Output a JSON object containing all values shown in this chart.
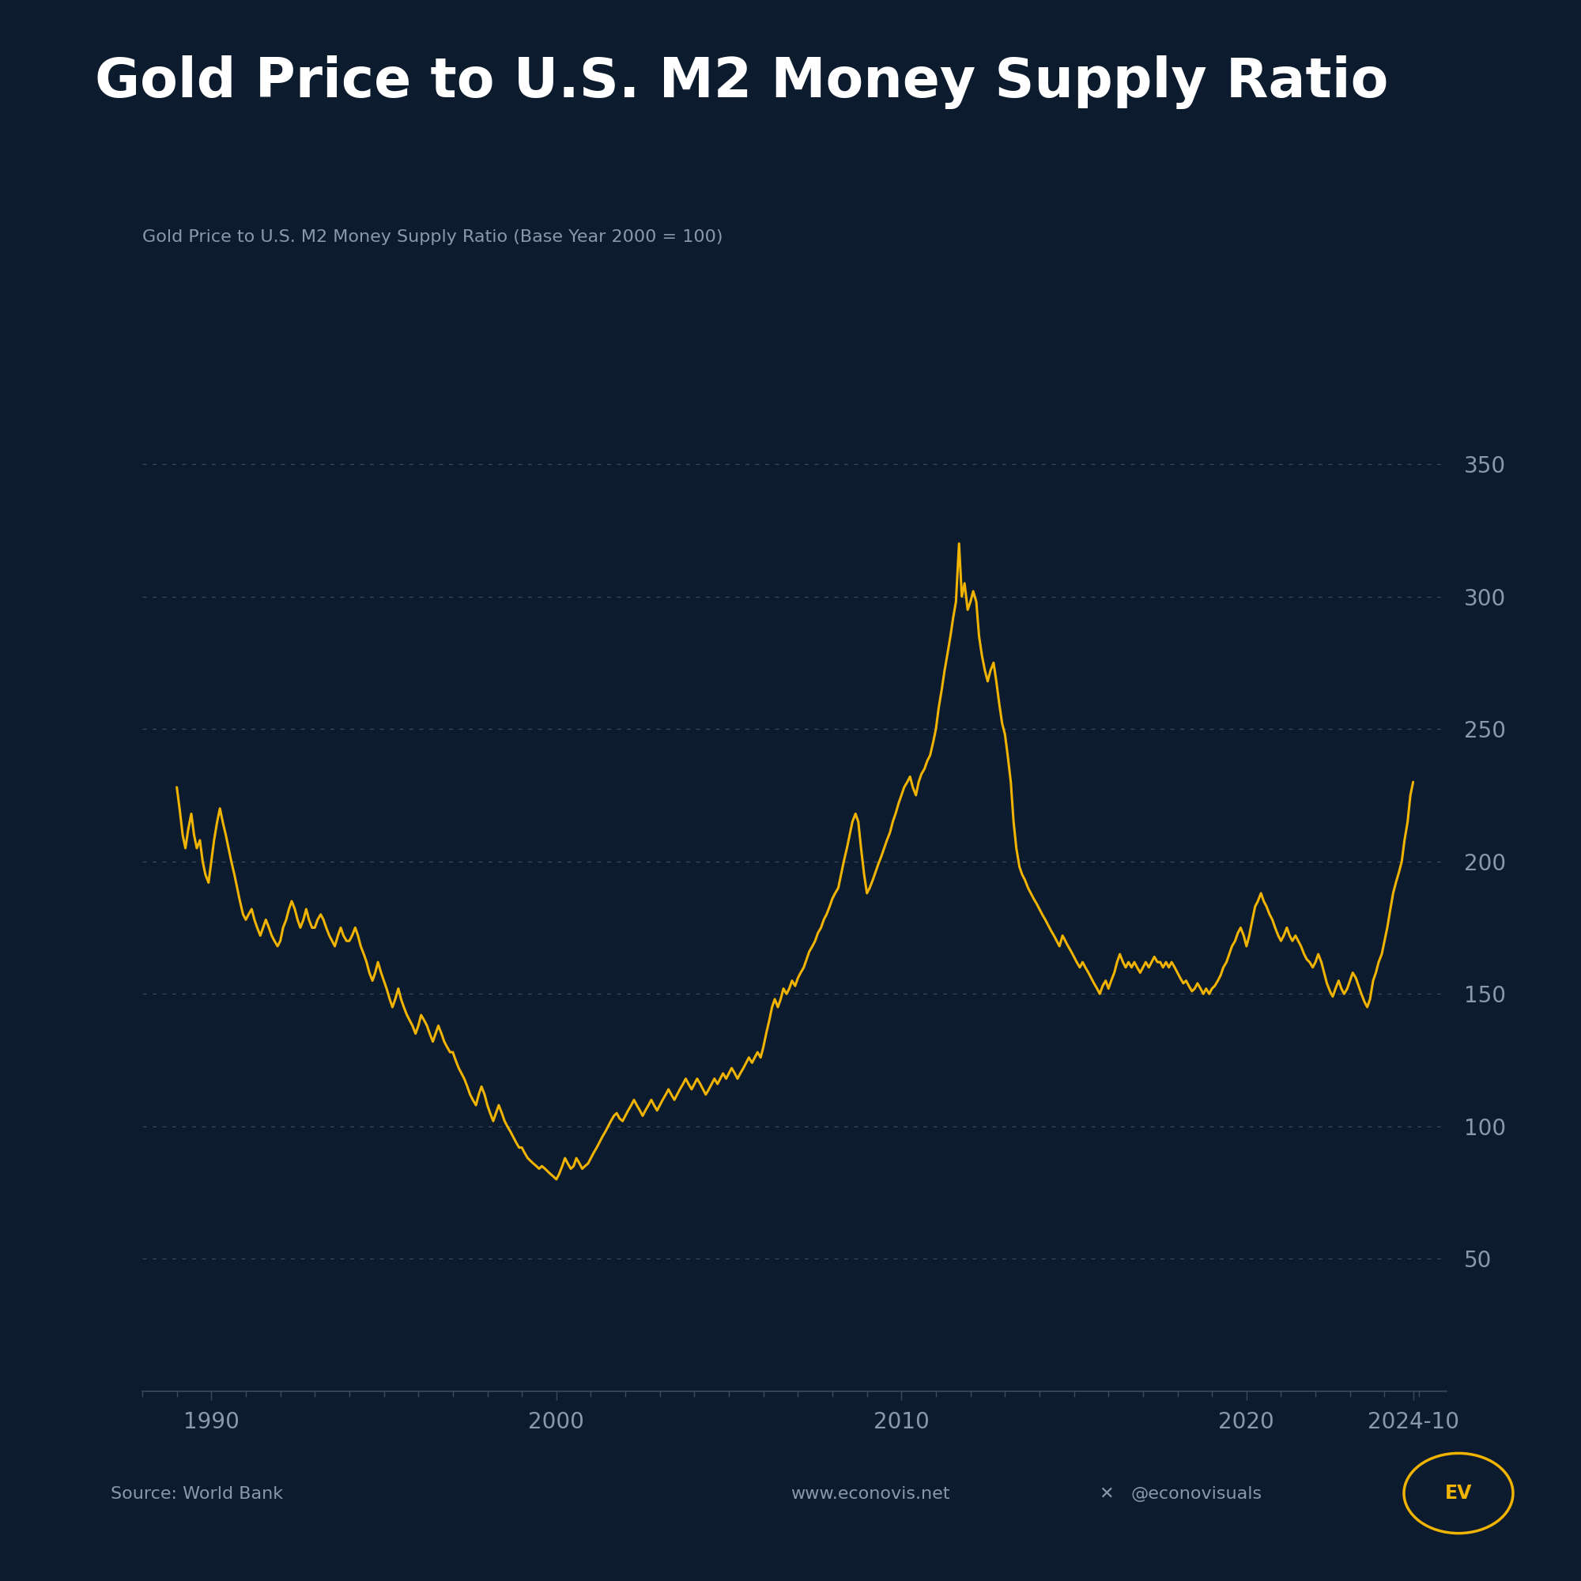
{
  "title": "Gold Price to U.S. M2 Money Supply Ratio",
  "subtitle": "Gold Price to U.S. M2 Money Supply Ratio (Base Year 2000 = 100)",
  "source": "Source: World Bank",
  "website": "www.econovis.net",
  "twitter": "@econovisuals",
  "background_color": "#0d1b2e",
  "line_color": "#f0b400",
  "grid_color": "#3a4a5c",
  "text_color": "#ffffff",
  "subtitle_color": "#8899aa",
  "ytick_color": "#8899aa",
  "xtick_color": "#8899aa",
  "ylim": [
    0,
    370
  ],
  "xlim_start": 1988.0,
  "xlim_end": 2025.8,
  "yticks": [
    50,
    100,
    150,
    200,
    250,
    300,
    350
  ],
  "ytick_labels": [
    "50",
    "100",
    "150",
    "200",
    "250",
    "300",
    "350"
  ],
  "xtick_positions": [
    1990,
    2000,
    2010,
    2020,
    2024.83
  ],
  "xtick_labels": [
    "1990",
    "2000",
    "2010",
    "2020",
    "2024-10"
  ],
  "data": [
    [
      1989.0,
      228
    ],
    [
      1989.08,
      220
    ],
    [
      1989.17,
      210
    ],
    [
      1989.25,
      205
    ],
    [
      1989.33,
      212
    ],
    [
      1989.42,
      218
    ],
    [
      1989.5,
      210
    ],
    [
      1989.58,
      205
    ],
    [
      1989.67,
      208
    ],
    [
      1989.75,
      200
    ],
    [
      1989.83,
      195
    ],
    [
      1989.92,
      192
    ],
    [
      1990.0,
      200
    ],
    [
      1990.08,
      208
    ],
    [
      1990.17,
      215
    ],
    [
      1990.25,
      220
    ],
    [
      1990.33,
      215
    ],
    [
      1990.42,
      210
    ],
    [
      1990.5,
      205
    ],
    [
      1990.58,
      200
    ],
    [
      1990.67,
      195
    ],
    [
      1990.75,
      190
    ],
    [
      1990.83,
      185
    ],
    [
      1990.92,
      180
    ],
    [
      1991.0,
      178
    ],
    [
      1991.08,
      180
    ],
    [
      1991.17,
      182
    ],
    [
      1991.25,
      178
    ],
    [
      1991.33,
      175
    ],
    [
      1991.42,
      172
    ],
    [
      1991.5,
      175
    ],
    [
      1991.58,
      178
    ],
    [
      1991.67,
      175
    ],
    [
      1991.75,
      172
    ],
    [
      1991.83,
      170
    ],
    [
      1991.92,
      168
    ],
    [
      1992.0,
      170
    ],
    [
      1992.08,
      175
    ],
    [
      1992.17,
      178
    ],
    [
      1992.25,
      182
    ],
    [
      1992.33,
      185
    ],
    [
      1992.42,
      182
    ],
    [
      1992.5,
      178
    ],
    [
      1992.58,
      175
    ],
    [
      1992.67,
      178
    ],
    [
      1992.75,
      182
    ],
    [
      1992.83,
      178
    ],
    [
      1992.92,
      175
    ],
    [
      1993.0,
      175
    ],
    [
      1993.08,
      178
    ],
    [
      1993.17,
      180
    ],
    [
      1993.25,
      178
    ],
    [
      1993.33,
      175
    ],
    [
      1993.42,
      172
    ],
    [
      1993.5,
      170
    ],
    [
      1993.58,
      168
    ],
    [
      1993.67,
      172
    ],
    [
      1993.75,
      175
    ],
    [
      1993.83,
      172
    ],
    [
      1993.92,
      170
    ],
    [
      1994.0,
      170
    ],
    [
      1994.08,
      172
    ],
    [
      1994.17,
      175
    ],
    [
      1994.25,
      172
    ],
    [
      1994.33,
      168
    ],
    [
      1994.42,
      165
    ],
    [
      1994.5,
      162
    ],
    [
      1994.58,
      158
    ],
    [
      1994.67,
      155
    ],
    [
      1994.75,
      158
    ],
    [
      1994.83,
      162
    ],
    [
      1994.92,
      158
    ],
    [
      1995.0,
      155
    ],
    [
      1995.08,
      152
    ],
    [
      1995.17,
      148
    ],
    [
      1995.25,
      145
    ],
    [
      1995.33,
      148
    ],
    [
      1995.42,
      152
    ],
    [
      1995.5,
      148
    ],
    [
      1995.58,
      145
    ],
    [
      1995.67,
      142
    ],
    [
      1995.75,
      140
    ],
    [
      1995.83,
      138
    ],
    [
      1995.92,
      135
    ],
    [
      1996.0,
      138
    ],
    [
      1996.08,
      142
    ],
    [
      1996.17,
      140
    ],
    [
      1996.25,
      138
    ],
    [
      1996.33,
      135
    ],
    [
      1996.42,
      132
    ],
    [
      1996.5,
      135
    ],
    [
      1996.58,
      138
    ],
    [
      1996.67,
      135
    ],
    [
      1996.75,
      132
    ],
    [
      1996.83,
      130
    ],
    [
      1996.92,
      128
    ],
    [
      1997.0,
      128
    ],
    [
      1997.08,
      125
    ],
    [
      1997.17,
      122
    ],
    [
      1997.25,
      120
    ],
    [
      1997.33,
      118
    ],
    [
      1997.42,
      115
    ],
    [
      1997.5,
      112
    ],
    [
      1997.58,
      110
    ],
    [
      1997.67,
      108
    ],
    [
      1997.75,
      112
    ],
    [
      1997.83,
      115
    ],
    [
      1997.92,
      112
    ],
    [
      1998.0,
      108
    ],
    [
      1998.08,
      105
    ],
    [
      1998.17,
      102
    ],
    [
      1998.25,
      105
    ],
    [
      1998.33,
      108
    ],
    [
      1998.42,
      105
    ],
    [
      1998.5,
      102
    ],
    [
      1998.58,
      100
    ],
    [
      1998.67,
      98
    ],
    [
      1998.75,
      96
    ],
    [
      1998.83,
      94
    ],
    [
      1998.92,
      92
    ],
    [
      1999.0,
      92
    ],
    [
      1999.08,
      90
    ],
    [
      1999.17,
      88
    ],
    [
      1999.25,
      87
    ],
    [
      1999.33,
      86
    ],
    [
      1999.42,
      85
    ],
    [
      1999.5,
      84
    ],
    [
      1999.58,
      85
    ],
    [
      1999.67,
      84
    ],
    [
      1999.75,
      83
    ],
    [
      1999.83,
      82
    ],
    [
      1999.92,
      81
    ],
    [
      2000.0,
      80
    ],
    [
      2000.08,
      82
    ],
    [
      2000.17,
      85
    ],
    [
      2000.25,
      88
    ],
    [
      2000.33,
      86
    ],
    [
      2000.42,
      84
    ],
    [
      2000.5,
      85
    ],
    [
      2000.58,
      88
    ],
    [
      2000.67,
      86
    ],
    [
      2000.75,
      84
    ],
    [
      2000.83,
      85
    ],
    [
      2000.92,
      86
    ],
    [
      2001.0,
      88
    ],
    [
      2001.08,
      90
    ],
    [
      2001.17,
      92
    ],
    [
      2001.25,
      94
    ],
    [
      2001.33,
      96
    ],
    [
      2001.42,
      98
    ],
    [
      2001.5,
      100
    ],
    [
      2001.58,
      102
    ],
    [
      2001.67,
      104
    ],
    [
      2001.75,
      105
    ],
    [
      2001.83,
      103
    ],
    [
      2001.92,
      102
    ],
    [
      2002.0,
      104
    ],
    [
      2002.08,
      106
    ],
    [
      2002.17,
      108
    ],
    [
      2002.25,
      110
    ],
    [
      2002.33,
      108
    ],
    [
      2002.42,
      106
    ],
    [
      2002.5,
      104
    ],
    [
      2002.58,
      106
    ],
    [
      2002.67,
      108
    ],
    [
      2002.75,
      110
    ],
    [
      2002.83,
      108
    ],
    [
      2002.92,
      106
    ],
    [
      2003.0,
      108
    ],
    [
      2003.08,
      110
    ],
    [
      2003.17,
      112
    ],
    [
      2003.25,
      114
    ],
    [
      2003.33,
      112
    ],
    [
      2003.42,
      110
    ],
    [
      2003.5,
      112
    ],
    [
      2003.58,
      114
    ],
    [
      2003.67,
      116
    ],
    [
      2003.75,
      118
    ],
    [
      2003.83,
      116
    ],
    [
      2003.92,
      114
    ],
    [
      2004.0,
      116
    ],
    [
      2004.08,
      118
    ],
    [
      2004.17,
      116
    ],
    [
      2004.25,
      114
    ],
    [
      2004.33,
      112
    ],
    [
      2004.42,
      114
    ],
    [
      2004.5,
      116
    ],
    [
      2004.58,
      118
    ],
    [
      2004.67,
      116
    ],
    [
      2004.75,
      118
    ],
    [
      2004.83,
      120
    ],
    [
      2004.92,
      118
    ],
    [
      2005.0,
      120
    ],
    [
      2005.08,
      122
    ],
    [
      2005.17,
      120
    ],
    [
      2005.25,
      118
    ],
    [
      2005.33,
      120
    ],
    [
      2005.42,
      122
    ],
    [
      2005.5,
      124
    ],
    [
      2005.58,
      126
    ],
    [
      2005.67,
      124
    ],
    [
      2005.75,
      126
    ],
    [
      2005.83,
      128
    ],
    [
      2005.92,
      126
    ],
    [
      2006.0,
      130
    ],
    [
      2006.08,
      135
    ],
    [
      2006.17,
      140
    ],
    [
      2006.25,
      145
    ],
    [
      2006.33,
      148
    ],
    [
      2006.42,
      145
    ],
    [
      2006.5,
      148
    ],
    [
      2006.58,
      152
    ],
    [
      2006.67,
      150
    ],
    [
      2006.75,
      152
    ],
    [
      2006.83,
      155
    ],
    [
      2006.92,
      153
    ],
    [
      2007.0,
      156
    ],
    [
      2007.08,
      158
    ],
    [
      2007.17,
      160
    ],
    [
      2007.25,
      163
    ],
    [
      2007.33,
      166
    ],
    [
      2007.42,
      168
    ],
    [
      2007.5,
      170
    ],
    [
      2007.58,
      173
    ],
    [
      2007.67,
      175
    ],
    [
      2007.75,
      178
    ],
    [
      2007.83,
      180
    ],
    [
      2007.92,
      183
    ],
    [
      2008.0,
      186
    ],
    [
      2008.08,
      188
    ],
    [
      2008.17,
      190
    ],
    [
      2008.25,
      195
    ],
    [
      2008.33,
      200
    ],
    [
      2008.42,
      205
    ],
    [
      2008.5,
      210
    ],
    [
      2008.58,
      215
    ],
    [
      2008.67,
      218
    ],
    [
      2008.75,
      215
    ],
    [
      2008.83,
      205
    ],
    [
      2008.92,
      195
    ],
    [
      2009.0,
      188
    ],
    [
      2009.08,
      190
    ],
    [
      2009.17,
      193
    ],
    [
      2009.25,
      196
    ],
    [
      2009.33,
      199
    ],
    [
      2009.42,
      202
    ],
    [
      2009.5,
      205
    ],
    [
      2009.58,
      208
    ],
    [
      2009.67,
      211
    ],
    [
      2009.75,
      215
    ],
    [
      2009.83,
      218
    ],
    [
      2009.92,
      222
    ],
    [
      2010.0,
      225
    ],
    [
      2010.08,
      228
    ],
    [
      2010.17,
      230
    ],
    [
      2010.25,
      232
    ],
    [
      2010.33,
      228
    ],
    [
      2010.42,
      225
    ],
    [
      2010.5,
      230
    ],
    [
      2010.58,
      233
    ],
    [
      2010.67,
      235
    ],
    [
      2010.75,
      238
    ],
    [
      2010.83,
      240
    ],
    [
      2010.92,
      245
    ],
    [
      2011.0,
      250
    ],
    [
      2011.08,
      258
    ],
    [
      2011.17,
      265
    ],
    [
      2011.25,
      272
    ],
    [
      2011.33,
      278
    ],
    [
      2011.42,
      285
    ],
    [
      2011.5,
      292
    ],
    [
      2011.58,
      298
    ],
    [
      2011.67,
      320
    ],
    [
      2011.75,
      300
    ],
    [
      2011.83,
      305
    ],
    [
      2011.92,
      295
    ],
    [
      2012.0,
      298
    ],
    [
      2012.08,
      302
    ],
    [
      2012.17,
      298
    ],
    [
      2012.25,
      285
    ],
    [
      2012.33,
      278
    ],
    [
      2012.42,
      272
    ],
    [
      2012.5,
      268
    ],
    [
      2012.58,
      272
    ],
    [
      2012.67,
      275
    ],
    [
      2012.75,
      268
    ],
    [
      2012.83,
      260
    ],
    [
      2012.92,
      252
    ],
    [
      2013.0,
      248
    ],
    [
      2013.08,
      240
    ],
    [
      2013.17,
      230
    ],
    [
      2013.25,
      215
    ],
    [
      2013.33,
      205
    ],
    [
      2013.42,
      198
    ],
    [
      2013.5,
      195
    ],
    [
      2013.58,
      193
    ],
    [
      2013.67,
      190
    ],
    [
      2013.75,
      188
    ],
    [
      2013.83,
      186
    ],
    [
      2013.92,
      184
    ],
    [
      2014.0,
      182
    ],
    [
      2014.08,
      180
    ],
    [
      2014.17,
      178
    ],
    [
      2014.25,
      176
    ],
    [
      2014.33,
      174
    ],
    [
      2014.42,
      172
    ],
    [
      2014.5,
      170
    ],
    [
      2014.58,
      168
    ],
    [
      2014.67,
      172
    ],
    [
      2014.75,
      170
    ],
    [
      2014.83,
      168
    ],
    [
      2014.92,
      166
    ],
    [
      2015.0,
      164
    ],
    [
      2015.08,
      162
    ],
    [
      2015.17,
      160
    ],
    [
      2015.25,
      162
    ],
    [
      2015.33,
      160
    ],
    [
      2015.42,
      158
    ],
    [
      2015.5,
      156
    ],
    [
      2015.58,
      154
    ],
    [
      2015.67,
      152
    ],
    [
      2015.75,
      150
    ],
    [
      2015.83,
      153
    ],
    [
      2015.92,
      155
    ],
    [
      2016.0,
      152
    ],
    [
      2016.08,
      155
    ],
    [
      2016.17,
      158
    ],
    [
      2016.25,
      162
    ],
    [
      2016.33,
      165
    ],
    [
      2016.42,
      162
    ],
    [
      2016.5,
      160
    ],
    [
      2016.58,
      162
    ],
    [
      2016.67,
      160
    ],
    [
      2016.75,
      162
    ],
    [
      2016.83,
      160
    ],
    [
      2016.92,
      158
    ],
    [
      2017.0,
      160
    ],
    [
      2017.08,
      162
    ],
    [
      2017.17,
      160
    ],
    [
      2017.25,
      162
    ],
    [
      2017.33,
      164
    ],
    [
      2017.42,
      162
    ],
    [
      2017.5,
      162
    ],
    [
      2017.58,
      160
    ],
    [
      2017.67,
      162
    ],
    [
      2017.75,
      160
    ],
    [
      2017.83,
      162
    ],
    [
      2017.92,
      160
    ],
    [
      2018.0,
      158
    ],
    [
      2018.08,
      156
    ],
    [
      2018.17,
      154
    ],
    [
      2018.25,
      155
    ],
    [
      2018.33,
      153
    ],
    [
      2018.42,
      151
    ],
    [
      2018.5,
      152
    ],
    [
      2018.58,
      154
    ],
    [
      2018.67,
      152
    ],
    [
      2018.75,
      150
    ],
    [
      2018.83,
      152
    ],
    [
      2018.92,
      150
    ],
    [
      2019.0,
      152
    ],
    [
      2019.08,
      153
    ],
    [
      2019.17,
      155
    ],
    [
      2019.25,
      157
    ],
    [
      2019.33,
      160
    ],
    [
      2019.42,
      162
    ],
    [
      2019.5,
      165
    ],
    [
      2019.58,
      168
    ],
    [
      2019.67,
      170
    ],
    [
      2019.75,
      173
    ],
    [
      2019.83,
      175
    ],
    [
      2019.92,
      172
    ],
    [
      2020.0,
      168
    ],
    [
      2020.08,
      172
    ],
    [
      2020.17,
      178
    ],
    [
      2020.25,
      183
    ],
    [
      2020.33,
      185
    ],
    [
      2020.42,
      188
    ],
    [
      2020.5,
      185
    ],
    [
      2020.58,
      183
    ],
    [
      2020.67,
      180
    ],
    [
      2020.75,
      178
    ],
    [
      2020.83,
      175
    ],
    [
      2020.92,
      172
    ],
    [
      2021.0,
      170
    ],
    [
      2021.08,
      172
    ],
    [
      2021.17,
      175
    ],
    [
      2021.25,
      172
    ],
    [
      2021.33,
      170
    ],
    [
      2021.42,
      172
    ],
    [
      2021.5,
      170
    ],
    [
      2021.58,
      168
    ],
    [
      2021.67,
      165
    ],
    [
      2021.75,
      163
    ],
    [
      2021.83,
      162
    ],
    [
      2021.92,
      160
    ],
    [
      2022.0,
      162
    ],
    [
      2022.08,
      165
    ],
    [
      2022.17,
      162
    ],
    [
      2022.25,
      158
    ],
    [
      2022.33,
      154
    ],
    [
      2022.42,
      151
    ],
    [
      2022.5,
      149
    ],
    [
      2022.58,
      152
    ],
    [
      2022.67,
      155
    ],
    [
      2022.75,
      152
    ],
    [
      2022.83,
      150
    ],
    [
      2022.92,
      152
    ],
    [
      2023.0,
      155
    ],
    [
      2023.08,
      158
    ],
    [
      2023.17,
      156
    ],
    [
      2023.25,
      153
    ],
    [
      2023.33,
      150
    ],
    [
      2023.42,
      147
    ],
    [
      2023.5,
      145
    ],
    [
      2023.58,
      148
    ],
    [
      2023.67,
      155
    ],
    [
      2023.75,
      158
    ],
    [
      2023.83,
      162
    ],
    [
      2023.92,
      165
    ],
    [
      2024.0,
      170
    ],
    [
      2024.08,
      175
    ],
    [
      2024.17,
      182
    ],
    [
      2024.25,
      188
    ],
    [
      2024.33,
      192
    ],
    [
      2024.42,
      196
    ],
    [
      2024.5,
      200
    ],
    [
      2024.58,
      208
    ],
    [
      2024.67,
      215
    ],
    [
      2024.75,
      225
    ],
    [
      2024.83,
      230
    ]
  ]
}
